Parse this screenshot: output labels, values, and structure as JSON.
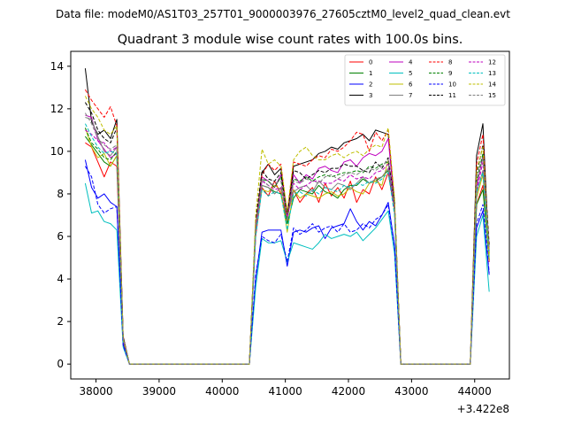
{
  "supertitle": "Data file: modeM0/AS1T03_257T01_9000003976_27605cztM0_level2_quad_clean.evt",
  "chart_data": {
    "type": "line",
    "title": "Quadrant 3 module wise count rates with 100.0s bins.",
    "xlabel": "",
    "ylabel": "",
    "x_offset_label": "+3.422e8",
    "xlim": [
      37600,
      44550
    ],
    "ylim": [
      -0.7,
      14.7
    ],
    "xticks": [
      38000,
      39000,
      40000,
      41000,
      42000,
      43000,
      44000
    ],
    "xtick_labels": [
      "38000",
      "39000",
      "40000",
      "41000",
      "42000",
      "43000",
      "44000"
    ],
    "yticks": [
      0,
      2,
      4,
      6,
      8,
      10,
      12,
      14
    ],
    "ytick_labels": [
      "0",
      "2",
      "4",
      "6",
      "8",
      "10",
      "12",
      "14"
    ],
    "legend_position": "top-right",
    "legend_columns": 4,
    "x": {
      "seg1": [
        37830,
        37930,
        38030,
        38130,
        38230,
        38330,
        38430,
        38530
      ],
      "gap1": [
        38530,
        40430
      ],
      "seg2": [
        40430,
        40530,
        40630,
        40730,
        40830,
        40930,
        41030,
        41130,
        41230,
        41330,
        41430,
        41530,
        41630,
        41730,
        41830,
        41930,
        42030,
        42130,
        42230,
        42330,
        42430,
        42530,
        42630,
        42730,
        42830
      ],
      "gap2": [
        42830,
        43930
      ],
      "seg3": [
        43930,
        44030,
        44130,
        44230
      ]
    },
    "series": [
      {
        "name": "0",
        "color": "#ff0000",
        "dash": "solid",
        "seg1": [
          10.4,
          10.2,
          9.5,
          8.8,
          9.5,
          9.3,
          1.0,
          0
        ],
        "seg2": [
          0,
          6.0,
          8.3,
          7.9,
          8.6,
          8.0,
          6.9,
          8.2,
          7.6,
          8.0,
          8.3,
          7.6,
          8.5,
          7.9,
          8.3,
          7.8,
          8.6,
          7.6,
          8.2,
          8.0,
          8.8,
          8.2,
          9.0,
          7.2,
          0
        ],
        "seg3": [
          0,
          7.5,
          8.4,
          4.8
        ]
      },
      {
        "name": "1",
        "color": "#008000",
        "dash": "solid",
        "seg1": [
          10.7,
          10.3,
          9.9,
          9.5,
          9.3,
          9.8,
          1.1,
          0
        ],
        "seg2": [
          0,
          6.3,
          8.4,
          8.3,
          8.1,
          8.0,
          6.6,
          7.8,
          8.2,
          8.1,
          8.0,
          8.4,
          8.1,
          8.0,
          7.8,
          8.2,
          8.4,
          8.4,
          8.7,
          8.5,
          8.6,
          8.8,
          9.1,
          7.3,
          0
        ],
        "seg3": [
          0,
          7.5,
          8.2,
          4.9
        ]
      },
      {
        "name": "2",
        "color": "#0000ff",
        "dash": "solid",
        "seg1": [
          9.6,
          8.3,
          7.8,
          8.0,
          7.6,
          7.4,
          0.9,
          0
        ],
        "seg2": [
          0,
          4.0,
          6.2,
          6.3,
          6.3,
          6.3,
          4.6,
          6.2,
          6.3,
          6.2,
          6.4,
          6.5,
          5.9,
          6.4,
          6.5,
          6.6,
          7.3,
          6.7,
          6.3,
          6.7,
          6.5,
          7.0,
          7.6,
          5.6,
          0
        ],
        "seg3": [
          0,
          6.4,
          7.2,
          4.2
        ]
      },
      {
        "name": "3",
        "color": "#000000",
        "dash": "solid",
        "seg1": [
          13.9,
          11.4,
          10.8,
          11.0,
          10.6,
          11.5,
          1.3,
          0
        ],
        "seg2": [
          0,
          6.5,
          9.0,
          9.4,
          8.9,
          9.2,
          7.0,
          9.3,
          9.4,
          9.5,
          9.6,
          9.9,
          10.0,
          10.2,
          10.1,
          10.4,
          10.5,
          10.6,
          10.8,
          10.5,
          11.0,
          10.9,
          10.8,
          7.6,
          0
        ],
        "seg3": [
          0,
          9.8,
          11.3,
          4.9
        ]
      },
      {
        "name": "4",
        "color": "#bf00bf",
        "dash": "solid",
        "seg1": [
          11.7,
          11.6,
          10.5,
          10.1,
          9.7,
          9.9,
          1.1,
          0
        ],
        "seg2": [
          0,
          6.1,
          8.8,
          8.6,
          8.3,
          8.9,
          7.1,
          8.9,
          8.5,
          8.9,
          8.7,
          9.2,
          9.3,
          9.1,
          9.0,
          9.5,
          9.6,
          9.3,
          9.7,
          9.9,
          9.8,
          10.0,
          10.6,
          7.4,
          0
        ],
        "seg3": [
          0,
          8.3,
          9.8,
          5.5
        ]
      },
      {
        "name": "5",
        "color": "#00bfbf",
        "dash": "solid",
        "seg1": [
          8.5,
          7.1,
          7.2,
          6.7,
          6.6,
          6.3,
          0.8,
          0
        ],
        "seg2": [
          0,
          3.6,
          5.9,
          5.7,
          5.7,
          5.8,
          4.8,
          5.7,
          5.6,
          5.5,
          5.4,
          5.7,
          6.1,
          5.9,
          6.0,
          6.1,
          6.0,
          6.2,
          5.8,
          6.1,
          6.4,
          6.8,
          7.2,
          5.2,
          0
        ],
        "seg3": [
          0,
          6.0,
          7.0,
          3.4
        ]
      },
      {
        "name": "6",
        "color": "#bfbf00",
        "dash": "solid",
        "seg1": [
          11.1,
          10.2,
          9.7,
          9.9,
          9.3,
          9.8,
          1.2,
          0
        ],
        "seg2": [
          0,
          6.4,
          8.2,
          8.1,
          8.4,
          8.2,
          6.2,
          8.2,
          7.8,
          8.0,
          7.9,
          7.8,
          8.0,
          8.1,
          7.9,
          8.0,
          8.3,
          8.1,
          8.0,
          8.5,
          8.6,
          8.4,
          9.6,
          7.1,
          0
        ],
        "seg3": [
          0,
          7.8,
          8.9,
          4.9
        ]
      },
      {
        "name": "7",
        "color": "#808080",
        "dash": "solid",
        "seg1": [
          11.6,
          11.5,
          10.7,
          10.0,
          9.8,
          10.2,
          1.2,
          0
        ],
        "seg2": [
          0,
          6.2,
          8.4,
          8.3,
          8.0,
          8.3,
          7.1,
          8.1,
          8.3,
          8.4,
          8.1,
          8.6,
          8.3,
          8.2,
          8.5,
          8.4,
          8.2,
          8.5,
          8.8,
          8.5,
          8.7,
          8.8,
          9.2,
          7.3,
          0
        ],
        "seg3": [
          0,
          8.0,
          9.1,
          5.2
        ]
      },
      {
        "name": "8",
        "color": "#ff0000",
        "dash": "dashed",
        "seg1": [
          12.9,
          12.4,
          12.0,
          11.6,
          12.1,
          11.2,
          1.3,
          0
        ],
        "seg2": [
          0,
          6.6,
          8.9,
          9.4,
          9.1,
          9.4,
          7.0,
          9.5,
          9.4,
          9.3,
          9.6,
          9.8,
          9.7,
          10.1,
          10.0,
          10.2,
          10.5,
          10.9,
          10.8,
          10.0,
          10.9,
          10.5,
          11.0,
          7.7,
          0
        ],
        "seg3": [
          0,
          9.4,
          10.8,
          5.2
        ]
      },
      {
        "name": "9",
        "color": "#008000",
        "dash": "dashed",
        "seg1": [
          11.1,
          10.4,
          10.1,
          9.7,
          9.6,
          10.0,
          1.2,
          0
        ],
        "seg2": [
          0,
          6.5,
          8.7,
          8.6,
          8.3,
          8.8,
          6.8,
          8.7,
          8.6,
          8.8,
          8.6,
          8.8,
          8.9,
          8.8,
          8.9,
          9.0,
          9.0,
          9.1,
          9.0,
          9.3,
          9.2,
          9.4,
          9.5,
          7.5,
          0
        ],
        "seg3": [
          0,
          8.6,
          9.9,
          5.1
        ]
      },
      {
        "name": "10",
        "color": "#0000ff",
        "dash": "dashed",
        "seg1": [
          9.3,
          8.8,
          7.5,
          7.1,
          7.3,
          7.4,
          0.9,
          0
        ],
        "seg2": [
          0,
          4.2,
          6.0,
          5.8,
          5.7,
          6.1,
          4.8,
          6.4,
          6.1,
          6.3,
          6.6,
          6.2,
          6.4,
          6.5,
          6.2,
          6.6,
          6.2,
          6.3,
          6.6,
          6.4,
          6.8,
          7.0,
          7.5,
          5.5,
          0
        ],
        "seg3": [
          0,
          6.6,
          7.5,
          4.3
        ]
      },
      {
        "name": "11",
        "color": "#000000",
        "dash": "dashed",
        "seg1": [
          12.3,
          11.8,
          11.0,
          10.6,
          10.4,
          11.1,
          1.3,
          0
        ],
        "seg2": [
          0,
          6.7,
          9.1,
          8.7,
          8.6,
          9.0,
          7.0,
          9.1,
          9.0,
          8.7,
          8.9,
          9.1,
          9.0,
          9.2,
          9.2,
          9.4,
          9.3,
          9.3,
          9.1,
          9.0,
          9.5,
          9.2,
          9.7,
          7.6,
          0
        ],
        "seg3": [
          0,
          8.9,
          10.3,
          5.6
        ]
      },
      {
        "name": "12",
        "color": "#bf00bf",
        "dash": "dashed",
        "seg1": [
          11.0,
          10.8,
          10.5,
          10.4,
          10.0,
          10.2,
          1.2,
          0
        ],
        "seg2": [
          0,
          6.5,
          8.6,
          8.4,
          8.2,
          8.3,
          6.9,
          8.5,
          8.2,
          8.4,
          8.6,
          8.6,
          8.5,
          8.5,
          8.7,
          8.6,
          8.9,
          8.7,
          8.8,
          8.7,
          9.0,
          9.1,
          9.4,
          7.2,
          0
        ],
        "seg3": [
          0,
          8.1,
          9.5,
          5.3
        ]
      },
      {
        "name": "13",
        "color": "#00bfbf",
        "dash": "dashed",
        "seg1": [
          11.3,
          10.7,
          10.2,
          9.9,
          10.0,
          9.9,
          1.2,
          0
        ],
        "seg2": [
          0,
          6.0,
          8.2,
          7.9,
          8.1,
          8.0,
          6.3,
          8.0,
          8.1,
          7.9,
          8.2,
          8.0,
          8.3,
          8.2,
          8.1,
          8.4,
          8.3,
          8.5,
          8.4,
          8.6,
          8.5,
          8.7,
          9.0,
          7.0,
          0
        ],
        "seg3": [
          0,
          8.1,
          9.0,
          5.0
        ]
      },
      {
        "name": "14",
        "color": "#bfbf00",
        "dash": "dashed",
        "seg1": [
          12.6,
          12.0,
          11.6,
          11.0,
          10.8,
          11.2,
          1.2,
          0
        ],
        "seg2": [
          0,
          7.0,
          10.1,
          9.4,
          9.6,
          9.3,
          7.2,
          9.6,
          10.0,
          10.2,
          9.8,
          9.6,
          9.6,
          9.8,
          9.9,
          9.7,
          9.9,
          10.0,
          9.8,
          10.1,
          10.3,
          10.2,
          11.1,
          7.8,
          0
        ],
        "seg3": [
          0,
          9.1,
          10.2,
          5.1
        ]
      },
      {
        "name": "15",
        "color": "#808080",
        "dash": "dashed",
        "seg1": [
          11.8,
          11.3,
          10.6,
          10.3,
          10.1,
          10.3,
          1.2,
          0
        ],
        "seg2": [
          0,
          6.4,
          8.7,
          8.4,
          8.5,
          8.6,
          6.7,
          8.6,
          8.5,
          8.7,
          8.6,
          8.5,
          8.8,
          8.9,
          8.7,
          8.9,
          9.0,
          8.9,
          9.1,
          9.2,
          9.1,
          9.3,
          9.6,
          7.4,
          0
        ],
        "seg3": [
          0,
          8.5,
          9.7,
          5.4
        ]
      }
    ]
  }
}
